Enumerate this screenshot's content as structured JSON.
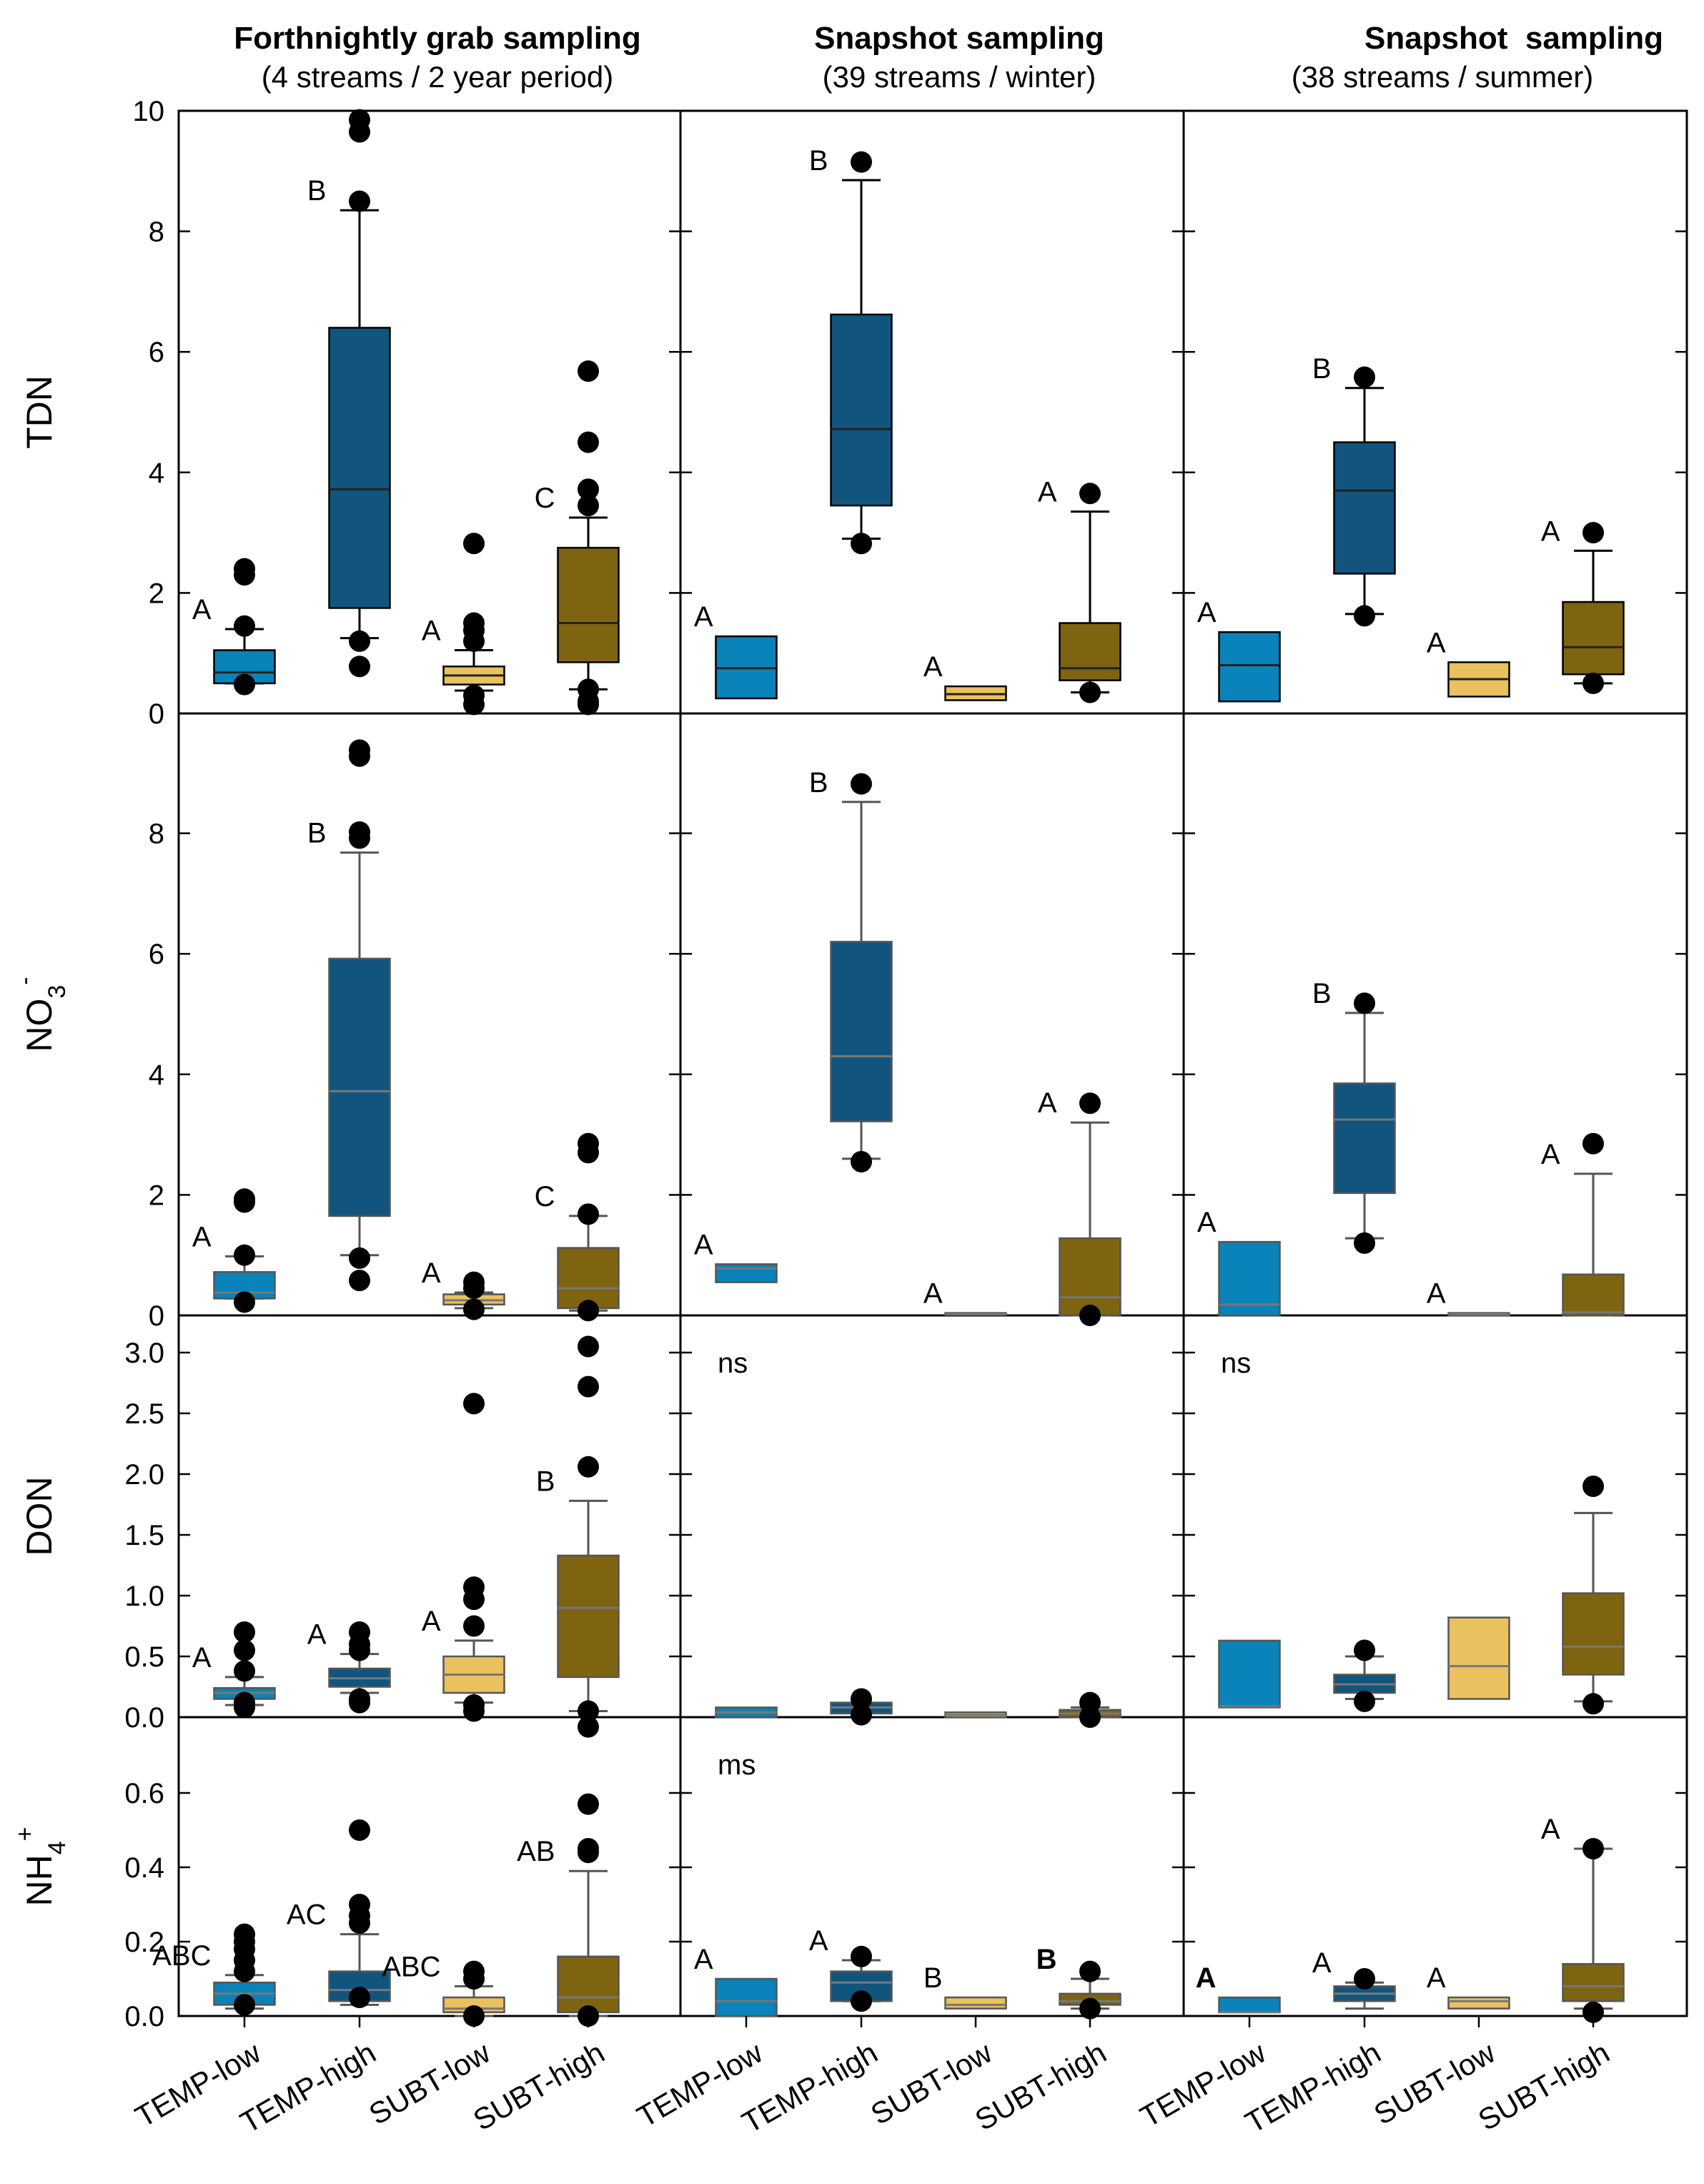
{
  "columns": [
    {
      "title": "Forthnightly grab sampling",
      "subtitle": "(4 streams / 2 year period)"
    },
    {
      "title": "Snapshot sampling",
      "subtitle": "(39 streams / winter)"
    },
    {
      "title": "Snapshot  sampling",
      "subtitle": "(38 streams / summer)"
    }
  ],
  "colors": {
    "TEMP-low": "#0983b9",
    "TEMP-high": "#11557f",
    "SUBT-low": "#eac15f",
    "SUBT-high": "#7e6410",
    "median_dark": "#222222",
    "median_grey": "#777777"
  },
  "chart_data": {
    "type": "boxplot",
    "categories": [
      "TEMP-low",
      "TEMP-high",
      "SUBT-low",
      "SUBT-high"
    ],
    "rows": [
      {
        "ylabel": "TDN",
        "ylabel_sub": "",
        "ylabel_sup": "",
        "ylim": [
          0,
          10
        ],
        "ticks": [
          "0",
          "2",
          "4",
          "6",
          "8",
          "10"
        ],
        "tick_values": [
          0,
          2,
          4,
          6,
          8,
          10
        ],
        "median_style": "dark",
        "panels": [
          {
            "note": "",
            "boxes": [
              {
                "q1": 0.5,
                "med": 0.68,
                "q3": 1.05,
                "wlo": 0.5,
                "whi": 1.4,
                "out": [
                  0.48,
                  1.45,
                  2.3,
                  2.4
                ],
                "label": "A",
                "bold": false
              },
              {
                "q1": 1.75,
                "med": 3.72,
                "q3": 6.4,
                "wlo": 1.25,
                "whi": 8.35,
                "out": [
                  1.2,
                  0.78,
                  8.5,
                  9.65,
                  9.85
                ],
                "label": "B",
                "bold": false
              },
              {
                "q1": 0.48,
                "med": 0.63,
                "q3": 0.78,
                "wlo": 0.38,
                "whi": 1.05,
                "out": [
                  0.3,
                  0.15,
                  1.2,
                  1.38,
                  1.5,
                  2.82
                ],
                "label": "A",
                "bold": false
              },
              {
                "q1": 0.85,
                "med": 1.5,
                "q3": 2.75,
                "wlo": 0.4,
                "whi": 3.25,
                "out": [
                  0.4,
                  0.2,
                  0.15,
                  3.45,
                  3.72,
                  4.5,
                  5.68
                ],
                "label": "C",
                "bold": false
              }
            ]
          },
          {
            "note": "",
            "boxes": [
              {
                "q1": 0.25,
                "med": 0.75,
                "q3": 1.28,
                "wlo": null,
                "whi": null,
                "out": [],
                "label": "A",
                "bold": false
              },
              {
                "q1": 3.45,
                "med": 4.72,
                "q3": 6.62,
                "wlo": 2.9,
                "whi": 8.85,
                "out": [
                  2.82,
                  9.15
                ],
                "label": "B",
                "bold": false
              },
              {
                "q1": 0.22,
                "med": 0.32,
                "q3": 0.45,
                "wlo": null,
                "whi": null,
                "out": [],
                "label": "A",
                "bold": false
              },
              {
                "q1": 0.55,
                "med": 0.75,
                "q3": 1.5,
                "wlo": 0.35,
                "whi": 3.35,
                "out": [
                  0.35,
                  3.65
                ],
                "label": "A",
                "bold": false
              }
            ]
          },
          {
            "note": "",
            "boxes": [
              {
                "q1": 0.2,
                "med": 0.8,
                "q3": 1.35,
                "wlo": null,
                "whi": null,
                "out": [],
                "label": "A",
                "bold": false
              },
              {
                "q1": 2.32,
                "med": 3.7,
                "q3": 4.5,
                "wlo": 1.65,
                "whi": 5.4,
                "out": [
                  1.62,
                  5.58
                ],
                "label": "B",
                "bold": false
              },
              {
                "q1": 0.28,
                "med": 0.57,
                "q3": 0.85,
                "wlo": null,
                "whi": null,
                "out": [],
                "label": "A",
                "bold": false
              },
              {
                "q1": 0.65,
                "med": 1.1,
                "q3": 1.85,
                "wlo": 0.5,
                "whi": 2.7,
                "out": [
                  0.5,
                  3.0
                ],
                "label": "A",
                "bold": false
              }
            ]
          }
        ]
      },
      {
        "ylabel": "NO",
        "ylabel_sub": "3",
        "ylabel_sup": "-",
        "ylim": [
          0,
          10
        ],
        "ticks": [
          "0",
          "2",
          "4",
          "6",
          "8"
        ],
        "tick_values": [
          0,
          2,
          4,
          6,
          8
        ],
        "median_style": "grey",
        "panels": [
          {
            "note": "",
            "boxes": [
              {
                "q1": 0.28,
                "med": 0.38,
                "q3": 0.72,
                "wlo": 0.28,
                "whi": 0.98,
                "out": [
                  0.22,
                  1.0,
                  1.88,
                  1.93
                ],
                "label": "A",
                "bold": false
              },
              {
                "q1": 1.65,
                "med": 3.72,
                "q3": 5.92,
                "wlo": 1.0,
                "whi": 7.68,
                "out": [
                  0.95,
                  0.58,
                  7.92,
                  8.02,
                  9.28,
                  9.38
                ],
                "label": "B",
                "bold": false
              },
              {
                "q1": 0.18,
                "med": 0.25,
                "q3": 0.35,
                "wlo": 0.12,
                "whi": 0.38,
                "out": [
                  0.1,
                  0.45,
                  0.55
                ],
                "label": "A",
                "bold": false
              },
              {
                "q1": 0.12,
                "med": 0.45,
                "q3": 1.12,
                "wlo": 0.08,
                "whi": 1.65,
                "out": [
                  0.08,
                  1.68,
                  2.7,
                  2.85
                ],
                "label": "C",
                "bold": false
              }
            ]
          },
          {
            "note": "",
            "boxes": [
              {
                "q1": 0.55,
                "med": 0.78,
                "q3": 0.85,
                "wlo": null,
                "whi": null,
                "out": [],
                "label": "A",
                "bold": false
              },
              {
                "q1": 3.22,
                "med": 4.3,
                "q3": 6.2,
                "wlo": 2.6,
                "whi": 8.52,
                "out": [
                  2.55,
                  8.82
                ],
                "label": "B",
                "bold": false
              },
              {
                "q1": 0.01,
                "med": 0.02,
                "q3": 0.04,
                "wlo": null,
                "whi": null,
                "out": [],
                "label": "A",
                "bold": false
              },
              {
                "q1": 0.0,
                "med": 0.3,
                "q3": 1.28,
                "wlo": 0.0,
                "whi": 3.2,
                "out": [
                  0.0,
                  3.52
                ],
                "label": "A",
                "bold": false
              }
            ]
          },
          {
            "note": "",
            "boxes": [
              {
                "q1": 0.0,
                "med": 0.18,
                "q3": 1.22,
                "wlo": null,
                "whi": null,
                "out": [],
                "label": "A",
                "bold": false
              },
              {
                "q1": 2.03,
                "med": 3.25,
                "q3": 3.85,
                "wlo": 1.28,
                "whi": 5.02,
                "out": [
                  1.2,
                  5.18
                ],
                "label": "B",
                "bold": false
              },
              {
                "q1": 0.0,
                "med": 0.02,
                "q3": 0.04,
                "wlo": null,
                "whi": null,
                "out": [],
                "label": "A",
                "bold": false
              },
              {
                "q1": 0.0,
                "med": 0.05,
                "q3": 0.68,
                "wlo": 0.0,
                "whi": 2.35,
                "out": [
                  2.85
                ],
                "label": "A",
                "bold": false
              }
            ]
          }
        ]
      },
      {
        "ylabel": "DON",
        "ylabel_sub": "",
        "ylabel_sup": "",
        "ylim": [
          0,
          3.3
        ],
        "ticks": [
          "0.0",
          "0.5",
          "1.0",
          "1.5",
          "2.0",
          "2.5",
          "3.0"
        ],
        "tick_values": [
          0,
          0.5,
          1.0,
          1.5,
          2.0,
          2.5,
          3.0
        ],
        "median_style": "grey",
        "panels": [
          {
            "note": "",
            "boxes": [
              {
                "q1": 0.15,
                "med": 0.2,
                "q3": 0.24,
                "wlo": 0.1,
                "whi": 0.33,
                "out": [
                  0.08,
                  0.12,
                  0.38,
                  0.55,
                  0.7
                ],
                "label": "A",
                "bold": false
              },
              {
                "q1": 0.25,
                "med": 0.32,
                "q3": 0.4,
                "wlo": 0.2,
                "whi": 0.52,
                "out": [
                  0.15,
                  0.12,
                  0.55,
                  0.6,
                  0.7
                ],
                "label": "A",
                "bold": false
              },
              {
                "q1": 0.2,
                "med": 0.35,
                "q3": 0.5,
                "wlo": 0.12,
                "whi": 0.63,
                "out": [
                  0.1,
                  0.05,
                  0.75,
                  0.97,
                  1.07,
                  2.58
                ],
                "label": "A",
                "bold": false
              },
              {
                "q1": 0.33,
                "med": 0.9,
                "q3": 1.33,
                "wlo": 0.05,
                "whi": 1.78,
                "out": [
                  0.05,
                  -0.08,
                  2.06,
                  2.72,
                  3.05
                ],
                "label": "B",
                "bold": false
              }
            ]
          },
          {
            "note": "ns",
            "boxes": [
              {
                "q1": 0.0,
                "med": 0.04,
                "q3": 0.08,
                "wlo": null,
                "whi": null,
                "out": [],
                "label": "",
                "bold": false
              },
              {
                "q1": 0.03,
                "med": 0.08,
                "q3": 0.12,
                "wlo": null,
                "whi": null,
                "out": [
                  0.02,
                  0.15
                ],
                "label": "",
                "bold": false
              },
              {
                "q1": 0.0,
                "med": 0.02,
                "q3": 0.04,
                "wlo": null,
                "whi": null,
                "out": [],
                "label": "",
                "bold": false
              },
              {
                "q1": 0.0,
                "med": 0.03,
                "q3": 0.06,
                "wlo": 0.0,
                "whi": 0.08,
                "out": [
                  0.0,
                  0.12
                ],
                "label": "",
                "bold": false
              }
            ]
          },
          {
            "note": "ns",
            "boxes": [
              {
                "q1": 0.08,
                "med": 0.09,
                "q3": 0.63,
                "wlo": null,
                "whi": null,
                "out": [],
                "label": "",
                "bold": false
              },
              {
                "q1": 0.2,
                "med": 0.27,
                "q3": 0.35,
                "wlo": 0.15,
                "whi": 0.5,
                "out": [
                  0.13,
                  0.55
                ],
                "label": "",
                "bold": false
              },
              {
                "q1": 0.15,
                "med": 0.42,
                "q3": 0.82,
                "wlo": null,
                "whi": null,
                "out": [],
                "label": "",
                "bold": false
              },
              {
                "q1": 0.35,
                "med": 0.58,
                "q3": 1.02,
                "wlo": 0.13,
                "whi": 1.68,
                "out": [
                  0.11,
                  1.9
                ],
                "label": "",
                "bold": false
              }
            ]
          }
        ]
      },
      {
        "ylabel": "NH",
        "ylabel_sub": "4",
        "ylabel_sup": "+",
        "ylim": [
          0,
          0.7
        ],
        "ticks": [
          "0.0",
          "0.2",
          "0.4",
          "0.6"
        ],
        "tick_values": [
          0,
          0.2,
          0.4,
          0.6
        ],
        "median_style": "grey",
        "panels": [
          {
            "note": "",
            "boxes": [
              {
                "q1": 0.03,
                "med": 0.06,
                "q3": 0.09,
                "wlo": 0.02,
                "whi": 0.11,
                "out": [
                  0.03,
                  0.12,
                  0.15,
                  0.18,
                  0.2,
                  0.22
                ],
                "label": "ABC",
                "bold": false
              },
              {
                "q1": 0.04,
                "med": 0.07,
                "q3": 0.12,
                "wlo": 0.03,
                "whi": 0.22,
                "out": [
                  0.05,
                  0.25,
                  0.27,
                  0.3,
                  0.5
                ],
                "label": "AC",
                "bold": false
              },
              {
                "q1": 0.01,
                "med": 0.02,
                "q3": 0.05,
                "wlo": 0.0,
                "whi": 0.08,
                "out": [
                  0.0,
                  0.1,
                  0.12
                ],
                "label": "ABC",
                "bold": false
              },
              {
                "q1": 0.01,
                "med": 0.05,
                "q3": 0.16,
                "wlo": 0.0,
                "whi": 0.39,
                "out": [
                  0.0,
                  0.44,
                  0.45,
                  0.57
                ],
                "label": "AB",
                "bold": false
              }
            ]
          },
          {
            "note": "ms",
            "boxes": [
              {
                "q1": 0.0,
                "med": 0.04,
                "q3": 0.1,
                "wlo": null,
                "whi": null,
                "out": [],
                "label": "A",
                "bold": false
              },
              {
                "q1": 0.04,
                "med": 0.09,
                "q3": 0.12,
                "wlo": 0.04,
                "whi": 0.15,
                "out": [
                  0.04,
                  0.16
                ],
                "label": "A",
                "bold": false
              },
              {
                "q1": 0.02,
                "med": 0.03,
                "q3": 0.05,
                "wlo": null,
                "whi": null,
                "out": [],
                "label": "B",
                "bold": false
              },
              {
                "q1": 0.03,
                "med": 0.04,
                "q3": 0.06,
                "wlo": 0.02,
                "whi": 0.1,
                "out": [
                  0.02,
                  0.12
                ],
                "label": "B",
                "bold": true
              }
            ]
          },
          {
            "note": "",
            "boxes": [
              {
                "q1": 0.01,
                "med": 0.01,
                "q3": 0.05,
                "wlo": null,
                "whi": null,
                "out": [],
                "label": "A",
                "bold": true
              },
              {
                "q1": 0.04,
                "med": 0.06,
                "q3": 0.08,
                "wlo": 0.02,
                "whi": 0.09,
                "out": [
                  0.1
                ],
                "label": "A",
                "bold": false
              },
              {
                "q1": 0.02,
                "med": 0.04,
                "q3": 0.05,
                "wlo": null,
                "whi": null,
                "out": [],
                "label": "A",
                "bold": false
              },
              {
                "q1": 0.04,
                "med": 0.08,
                "q3": 0.14,
                "wlo": 0.02,
                "whi": 0.45,
                "out": [
                  0.01,
                  0.45
                ],
                "label": "A",
                "bold": false
              }
            ]
          }
        ]
      }
    ]
  }
}
